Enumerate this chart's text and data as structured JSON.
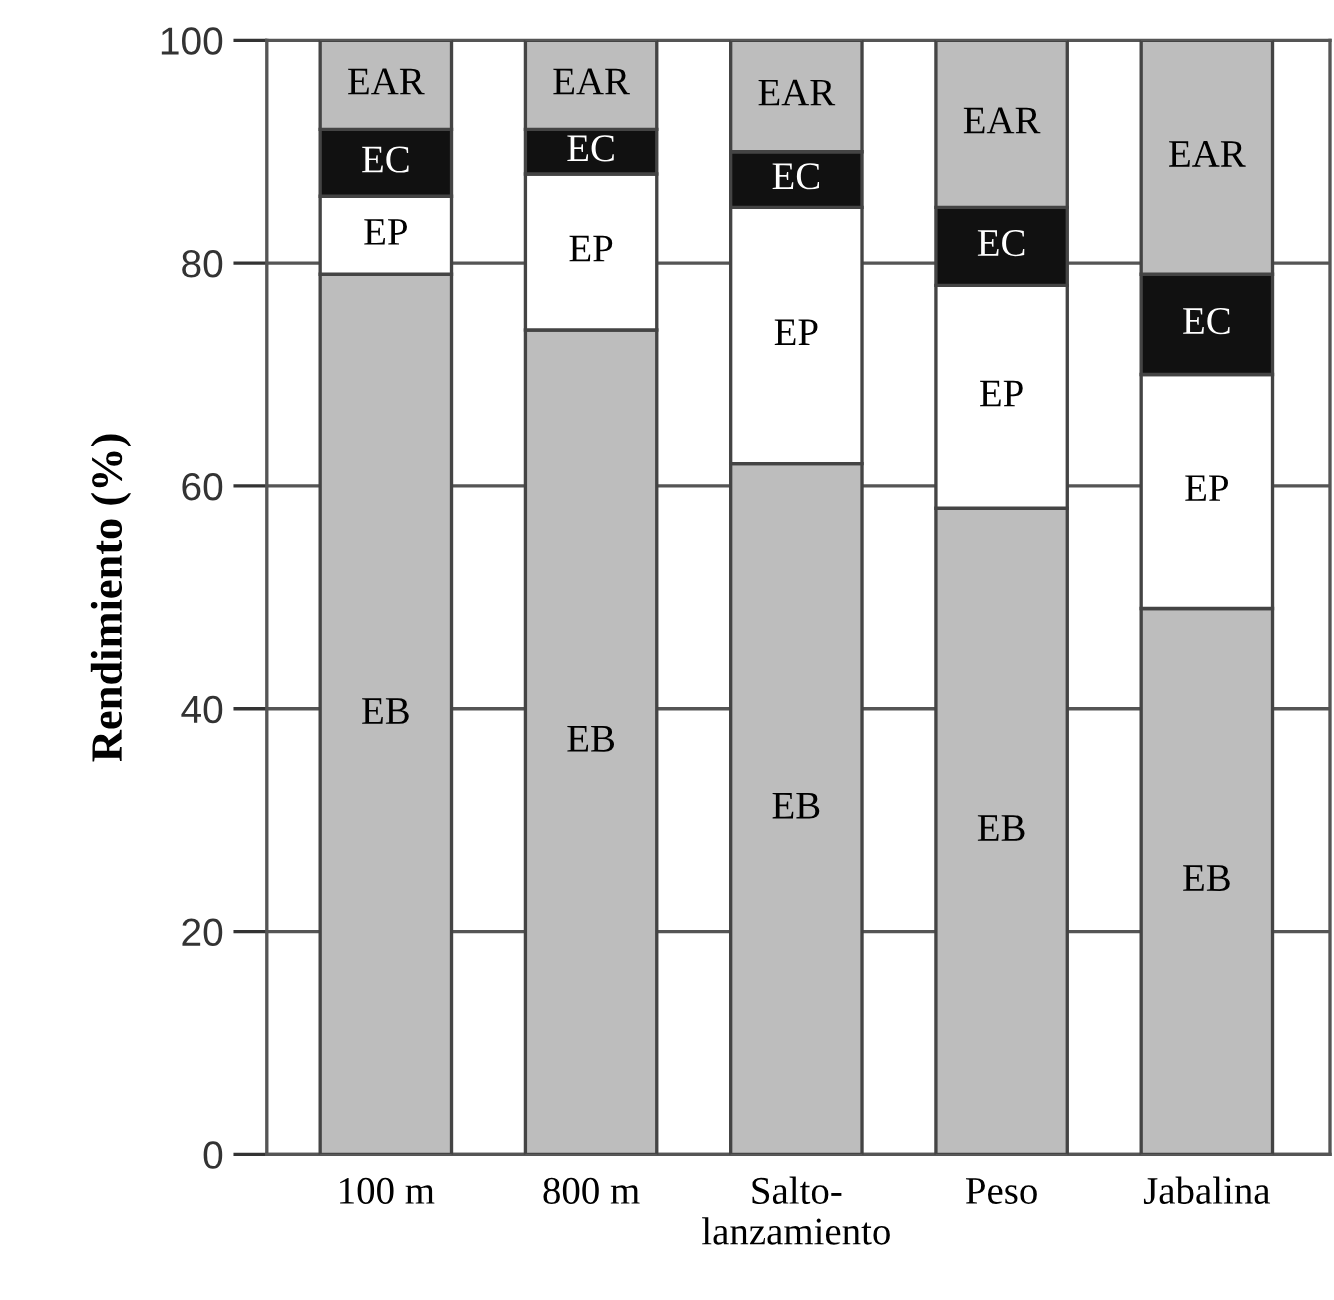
{
  "chart_data": {
    "type": "bar",
    "stacked": true,
    "ylabel": "Rendimiento (%)",
    "categories": [
      "100 m",
      "800 m",
      "Salto-\nlanzamiento",
      "Peso",
      "Jabalina"
    ],
    "series": [
      {
        "name": "EB",
        "color": "#bdbdbd",
        "values": [
          79,
          74,
          62,
          58,
          49
        ]
      },
      {
        "name": "EP",
        "color": "#ffffff",
        "values": [
          7,
          14,
          23,
          20,
          21
        ]
      },
      {
        "name": "EC",
        "color": "#111111",
        "values": [
          6,
          4,
          5,
          7,
          9
        ]
      },
      {
        "name": "EAR",
        "color": "#bdbdbd",
        "values": [
          8,
          8,
          10,
          15,
          21
        ]
      }
    ],
    "ylim": [
      0,
      100
    ],
    "yticks": [
      0,
      20,
      40,
      60,
      80,
      100
    ],
    "grid": "y",
    "legend": false
  }
}
